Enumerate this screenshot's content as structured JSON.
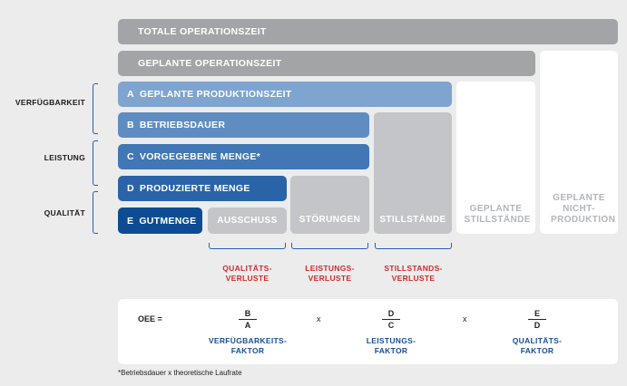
{
  "rows": {
    "total": "TOTALE OPERATIONSZEIT",
    "planned": "GEPLANTE OPERATIONSZEIT",
    "a": {
      "letter": "A",
      "label": "GEPLANTE PRODUKTIONSZEIT"
    },
    "b": {
      "letter": "B",
      "label": "BETRIEBSDAUER"
    },
    "c": {
      "letter": "C",
      "label": "VORGEGEBENE MENGE*"
    },
    "d": {
      "letter": "D",
      "label": "PRODUZIERTE MENGE"
    },
    "e": {
      "letter": "E",
      "label": "GUTMENGE"
    }
  },
  "blocks": {
    "ausschuss": "AUSSCHUSS",
    "stoerungen": "STÖRUNGEN",
    "stillstaende": "STILLSTÄNDE",
    "geplante_stillstaende": "GEPLANTE STILLSTÄNDE",
    "geplante_nicht_produktion": "GEPLANTE NICHT-PRODUKTION"
  },
  "side_labels": {
    "availability": "VERFÜGBARKEIT",
    "performance": "LEISTUNG",
    "quality": "QUALITÄT"
  },
  "losses": {
    "quality": "QUALITÄTS-VERLUSTE",
    "performance": "LEISTUNGS-VERLUSTE",
    "downtime": "STILLSTANDS-VERLUSTE"
  },
  "formula": {
    "label": "OEE =",
    "times": "x",
    "f1": {
      "num": "B",
      "den": "A",
      "name": "VERFÜGBARKEITS-FAKTOR"
    },
    "f2": {
      "num": "D",
      "den": "C",
      "name": "LEISTUNGS-FAKTOR"
    },
    "f3": {
      "num": "E",
      "den": "D",
      "name": "QUALITÄTS-FAKTOR"
    }
  },
  "footnote": "*Betriebsdauer x theoretische Laufrate",
  "colors": {
    "background": "#ececed",
    "gray_dark": "#a2a4a7",
    "gray_light": "#c4c5c8",
    "blue_a": "#7ea4cf",
    "blue_b": "#5f8dc2",
    "blue_c": "#4177b4",
    "blue_d": "#2a63a8",
    "blue_e": "#0d4c93",
    "loss_red": "#d22b2b",
    "factor_blue": "#1a4e96"
  }
}
